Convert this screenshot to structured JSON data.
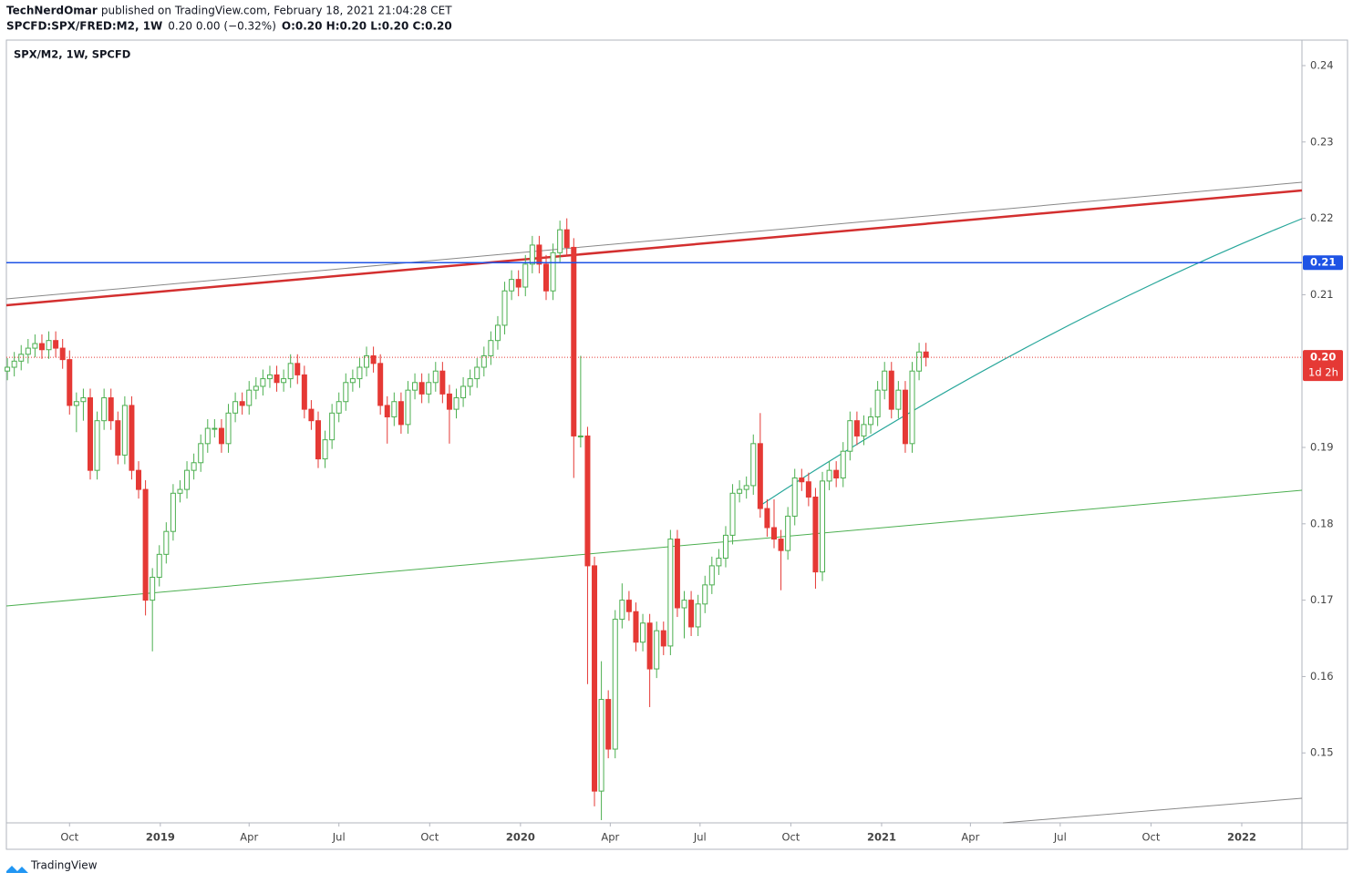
{
  "header": {
    "author": "TechNerdOmar",
    "published": "published on TradingView.com, February 18, 2021 21:04:28 CET",
    "symbol": "SPCFD:SPX/FRED:M2, 1W",
    "change": "0.20 0.00 (−0.32%)",
    "ohlc": "O:0.20 H:0.20 L:0.20 C:0.20"
  },
  "footer": {
    "brand": "TradingView"
  },
  "chart_data": {
    "type": "candlestick",
    "title": "SPX/M2, 1W, SPCFD",
    "x": [
      "2018-07-30",
      "2018-08-06",
      "2018-08-13",
      "2018-08-20",
      "2018-08-27",
      "2018-09-03",
      "2018-09-10",
      "2018-09-17",
      "2018-09-24",
      "2018-10-01",
      "2018-10-08",
      "2018-10-15",
      "2018-10-22",
      "2018-10-29",
      "2018-11-05",
      "2018-11-12",
      "2018-11-19",
      "2018-11-26",
      "2018-12-03",
      "2018-12-10",
      "2018-12-17",
      "2018-12-24",
      "2018-12-31",
      "2019-01-07",
      "2019-01-14",
      "2019-01-21",
      "2019-01-28",
      "2019-02-04",
      "2019-02-11",
      "2019-02-18",
      "2019-02-25",
      "2019-03-04",
      "2019-03-11",
      "2019-03-18",
      "2019-03-25",
      "2019-04-01",
      "2019-04-08",
      "2019-04-15",
      "2019-04-22",
      "2019-04-29",
      "2019-05-06",
      "2019-05-13",
      "2019-05-20",
      "2019-05-27",
      "2019-06-03",
      "2019-06-10",
      "2019-06-17",
      "2019-06-24",
      "2019-07-01",
      "2019-07-08",
      "2019-07-15",
      "2019-07-22",
      "2019-07-29",
      "2019-08-05",
      "2019-08-12",
      "2019-08-19",
      "2019-08-26",
      "2019-09-02",
      "2019-09-09",
      "2019-09-16",
      "2019-09-23",
      "2019-09-30",
      "2019-10-07",
      "2019-10-14",
      "2019-10-21",
      "2019-10-28",
      "2019-11-04",
      "2019-11-11",
      "2019-11-18",
      "2019-11-25",
      "2019-12-02",
      "2019-12-09",
      "2019-12-16",
      "2019-12-23",
      "2019-12-30",
      "2020-01-06",
      "2020-01-13",
      "2020-01-20",
      "2020-01-27",
      "2020-02-03",
      "2020-02-10",
      "2020-02-17",
      "2020-02-24",
      "2020-03-02",
      "2020-03-09",
      "2020-03-16",
      "2020-03-23",
      "2020-03-30",
      "2020-04-06",
      "2020-04-13",
      "2020-04-20",
      "2020-04-27",
      "2020-05-04",
      "2020-05-11",
      "2020-05-18",
      "2020-05-25",
      "2020-06-01",
      "2020-06-08",
      "2020-06-15",
      "2020-06-22",
      "2020-06-29",
      "2020-07-06",
      "2020-07-13",
      "2020-07-20",
      "2020-07-27",
      "2020-08-03",
      "2020-08-10",
      "2020-08-17",
      "2020-08-24",
      "2020-08-31",
      "2020-09-07",
      "2020-09-14",
      "2020-09-21",
      "2020-09-28",
      "2020-10-05",
      "2020-10-12",
      "2020-10-19",
      "2020-10-26",
      "2020-11-02",
      "2020-11-09",
      "2020-11-16",
      "2020-11-23",
      "2020-11-30",
      "2020-12-07",
      "2020-12-14",
      "2020-12-21",
      "2020-12-28",
      "2021-01-04",
      "2021-01-11",
      "2021-01-18",
      "2021-01-25",
      "2021-02-01",
      "2021-02-08",
      "2021-02-15"
    ],
    "open": [
      0.2,
      0.2005,
      0.2013,
      0.2022,
      0.203,
      0.2036,
      0.2028,
      0.204,
      0.203,
      0.2015,
      0.1955,
      0.196,
      0.1965,
      0.187,
      0.1935,
      0.1965,
      0.1935,
      0.189,
      0.1955,
      0.187,
      0.1845,
      0.17,
      0.173,
      0.176,
      0.179,
      0.184,
      0.1845,
      0.187,
      0.188,
      0.1905,
      0.1925,
      0.1925,
      0.1905,
      0.1945,
      0.196,
      0.1955,
      0.1975,
      0.198,
      0.199,
      0.1995,
      0.1985,
      0.199,
      0.201,
      0.1995,
      0.195,
      0.1935,
      0.1885,
      0.191,
      0.1945,
      0.196,
      0.1985,
      0.199,
      0.2005,
      0.202,
      0.201,
      0.1955,
      0.194,
      0.196,
      0.193,
      0.1975,
      0.1985,
      0.197,
      0.1985,
      0.2,
      0.197,
      0.195,
      0.1965,
      0.198,
      0.199,
      0.2005,
      0.202,
      0.204,
      0.206,
      0.2105,
      0.212,
      0.211,
      0.214,
      0.2165,
      0.214,
      0.2105,
      0.2155,
      0.2185,
      0.2162,
      0.1915,
      0.1915,
      0.1745,
      0.145,
      0.157,
      0.1505,
      0.1675,
      0.17,
      0.1685,
      0.1645,
      0.167,
      0.161,
      0.166,
      0.164,
      0.178,
      0.169,
      0.17,
      0.1665,
      0.1695,
      0.172,
      0.1745,
      0.1755,
      0.1785,
      0.184,
      0.1845,
      0.185,
      0.1905,
      0.182,
      0.1795,
      0.178,
      0.1765,
      0.181,
      0.186,
      0.1855,
      0.1835,
      0.1737,
      0.1856,
      0.187,
      0.186,
      0.1895,
      0.1935,
      0.1915,
      0.193,
      0.194,
      0.1975,
      0.2,
      0.195,
      0.1975,
      0.1905,
      0.2,
      0.2025
    ],
    "high": [
      0.2017,
      0.2025,
      0.2034,
      0.2042,
      0.2048,
      0.2048,
      0.2052,
      0.2052,
      0.2042,
      0.2027,
      0.1972,
      0.1977,
      0.1977,
      0.1947,
      0.1977,
      0.1977,
      0.1947,
      0.1967,
      0.1967,
      0.1882,
      0.1857,
      0.1742,
      0.1772,
      0.1802,
      0.1852,
      0.1857,
      0.1882,
      0.1892,
      0.1917,
      0.1937,
      0.1937,
      0.1937,
      0.1957,
      0.1972,
      0.1972,
      0.1987,
      0.1992,
      0.2002,
      0.2007,
      0.2007,
      0.2002,
      0.2022,
      0.2022,
      0.2007,
      0.1962,
      0.1947,
      0.1922,
      0.1957,
      0.1972,
      0.1997,
      0.2002,
      0.2017,
      0.2032,
      0.2032,
      0.2022,
      0.1967,
      0.1972,
      0.1972,
      0.1987,
      0.1997,
      0.1997,
      0.1997,
      0.2012,
      0.2012,
      0.1982,
      0.1977,
      0.1992,
      0.2002,
      0.2017,
      0.2032,
      0.2052,
      0.2072,
      0.2117,
      0.2132,
      0.2132,
      0.2152,
      0.2177,
      0.2177,
      0.2152,
      0.2167,
      0.2197,
      0.22,
      0.2174,
      0.202,
      0.1927,
      0.1757,
      0.162,
      0.1582,
      0.1687,
      0.1722,
      0.1712,
      0.1697,
      0.1682,
      0.1682,
      0.1672,
      0.1672,
      0.1792,
      0.1792,
      0.1712,
      0.1712,
      0.1707,
      0.1732,
      0.1757,
      0.1767,
      0.1797,
      0.1852,
      0.1857,
      0.1862,
      0.1917,
      0.1945,
      0.1832,
      0.1832,
      0.1792,
      0.1822,
      0.1872,
      0.1872,
      0.1867,
      0.1847,
      0.1868,
      0.1882,
      0.1882,
      0.1907,
      0.1947,
      0.1947,
      0.1942,
      0.1952,
      0.1987,
      0.2012,
      0.2012,
      0.1987,
      0.1987,
      0.2012,
      0.2037,
      0.2037
    ],
    "low": [
      0.1988,
      0.1993,
      0.2001,
      0.201,
      0.2018,
      0.2016,
      0.2016,
      0.2018,
      0.2003,
      0.1943,
      0.192,
      0.1935,
      0.1858,
      0.1858,
      0.1923,
      0.1923,
      0.1878,
      0.1878,
      0.1858,
      0.1833,
      0.168,
      0.1633,
      0.1718,
      0.1748,
      0.1778,
      0.1828,
      0.1833,
      0.1858,
      0.1868,
      0.1893,
      0.1913,
      0.1893,
      0.1893,
      0.1933,
      0.1943,
      0.1943,
      0.1963,
      0.1968,
      0.1978,
      0.1973,
      0.1973,
      0.1978,
      0.1983,
      0.1938,
      0.1923,
      0.1873,
      0.1873,
      0.1898,
      0.1933,
      0.1948,
      0.1973,
      0.1978,
      0.1993,
      0.1998,
      0.1943,
      0.1905,
      0.1928,
      0.1918,
      0.1918,
      0.1963,
      0.1958,
      0.1958,
      0.1973,
      0.1958,
      0.1905,
      0.1938,
      0.1953,
      0.1968,
      0.1978,
      0.1993,
      0.2008,
      0.2028,
      0.2048,
      0.2093,
      0.2098,
      0.2098,
      0.2128,
      0.2128,
      0.2093,
      0.2093,
      0.2143,
      0.215,
      0.186,
      0.19,
      0.159,
      0.143,
      0.1412,
      0.1493,
      0.1493,
      0.1663,
      0.1673,
      0.1633,
      0.1633,
      0.156,
      0.1598,
      0.1628,
      0.1628,
      0.1678,
      0.165,
      0.1653,
      0.1653,
      0.1683,
      0.1708,
      0.1733,
      0.1743,
      0.1773,
      0.1828,
      0.1833,
      0.1838,
      0.1808,
      0.1783,
      0.1768,
      0.1713,
      0.1753,
      0.1798,
      0.1843,
      0.1823,
      0.1715,
      0.1725,
      0.1844,
      0.1848,
      0.1848,
      0.1883,
      0.1903,
      0.1903,
      0.1918,
      0.1928,
      0.1963,
      0.1938,
      0.1938,
      0.1893,
      0.1893,
      0.1988,
      0.2006
    ],
    "close": [
      0.2005,
      0.2013,
      0.2022,
      0.203,
      0.2036,
      0.2028,
      0.204,
      0.203,
      0.2015,
      0.1955,
      0.196,
      0.1965,
      0.187,
      0.1935,
      0.1965,
      0.1935,
      0.189,
      0.1955,
      0.187,
      0.1845,
      0.17,
      0.173,
      0.176,
      0.179,
      0.184,
      0.1845,
      0.187,
      0.188,
      0.1905,
      0.1925,
      0.1925,
      0.1905,
      0.1945,
      0.196,
      0.1955,
      0.1975,
      0.198,
      0.199,
      0.1995,
      0.1985,
      0.199,
      0.201,
      0.1995,
      0.195,
      0.1935,
      0.1885,
      0.191,
      0.1945,
      0.196,
      0.1985,
      0.199,
      0.2005,
      0.202,
      0.201,
      0.1955,
      0.194,
      0.196,
      0.193,
      0.1975,
      0.1985,
      0.197,
      0.1985,
      0.2,
      0.197,
      0.195,
      0.1965,
      0.198,
      0.199,
      0.2005,
      0.202,
      0.204,
      0.206,
      0.2105,
      0.212,
      0.211,
      0.214,
      0.2165,
      0.214,
      0.2105,
      0.2155,
      0.2185,
      0.2162,
      0.1915,
      0.1915,
      0.1745,
      0.145,
      0.157,
      0.1505,
      0.1675,
      0.17,
      0.1685,
      0.1645,
      0.167,
      0.161,
      0.166,
      0.164,
      0.178,
      0.169,
      0.17,
      0.1665,
      0.1695,
      0.172,
      0.1745,
      0.1755,
      0.1785,
      0.184,
      0.1845,
      0.185,
      0.1905,
      0.182,
      0.1795,
      0.178,
      0.1765,
      0.181,
      0.186,
      0.1855,
      0.1835,
      0.1737,
      0.1856,
      0.187,
      0.186,
      0.1895,
      0.1935,
      0.1915,
      0.193,
      0.194,
      0.1975,
      0.2,
      0.195,
      0.1975,
      0.1905,
      0.2,
      0.2025,
      0.2018
    ],
    "up_color": "#4caf50",
    "down_color": "#e53935",
    "xlim": [
      "2018-07-29",
      "2022-03-03"
    ],
    "xticks": [
      {
        "value": "2018-10-01",
        "label": "Oct"
      },
      {
        "value": "2019-01-01",
        "label": "2019"
      },
      {
        "value": "2019-04-01",
        "label": "Apr"
      },
      {
        "value": "2019-07-01",
        "label": "Jul"
      },
      {
        "value": "2019-10-01",
        "label": "Oct"
      },
      {
        "value": "2020-01-01",
        "label": "2020"
      },
      {
        "value": "2020-04-01",
        "label": "Apr"
      },
      {
        "value": "2020-07-01",
        "label": "Jul"
      },
      {
        "value": "2020-10-01",
        "label": "Oct"
      },
      {
        "value": "2021-01-01",
        "label": "2021"
      },
      {
        "value": "2021-04-01",
        "label": "Apr"
      },
      {
        "value": "2021-07-01",
        "label": "Jul"
      },
      {
        "value": "2021-10-01",
        "label": "Oct"
      },
      {
        "value": "2022-01-01",
        "label": "2022"
      }
    ],
    "ylim": [
      0.14084,
      0.24334
    ],
    "yticks": [
      0.15,
      0.16,
      0.17,
      0.18,
      0.19,
      0.21,
      0.22,
      0.23,
      0.24
    ],
    "price_line": {
      "value": 0.2142,
      "label": "0.21",
      "color": "#1e53e5"
    },
    "last_price": {
      "value": 0.2018,
      "label": "0.20",
      "countdown": "1d 2h",
      "color": "#e53935"
    }
  }
}
